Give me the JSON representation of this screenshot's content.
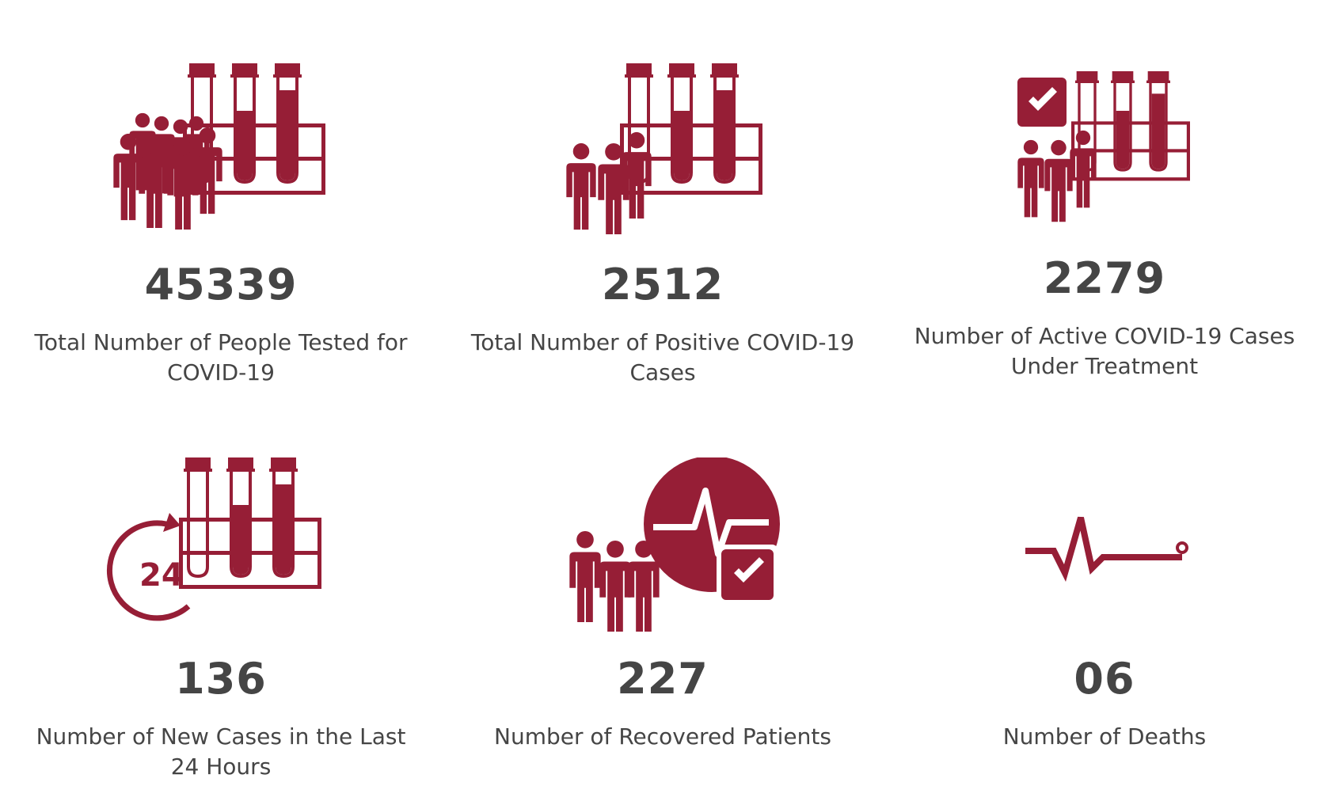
{
  "theme": {
    "accent": "#961e36",
    "text": "#454545",
    "background": "#ffffff"
  },
  "stats": [
    {
      "value": "45339",
      "label": "Total Number of People Tested for COVID-19",
      "icon": "people-with-test-tubes-icon"
    },
    {
      "value": "2512",
      "label": "Total Number of Positive COVID-19 Cases",
      "icon": "positive-test-tubes-icon"
    },
    {
      "value": "2279",
      "label": "Number of Active COVID-19 Cases Under Treatment",
      "icon": "active-cases-checkbox-icon"
    },
    {
      "value": "136",
      "label": "Number of New Cases in the Last 24 Hours",
      "icon": "24-hours-test-tubes-icon"
    },
    {
      "value": "227",
      "label": "Number of Recovered Patients",
      "icon": "recovered-heartbeat-icon"
    },
    {
      "value": "06",
      "label": "Number of Deaths",
      "icon": "flatline-heartbeat-icon"
    }
  ]
}
